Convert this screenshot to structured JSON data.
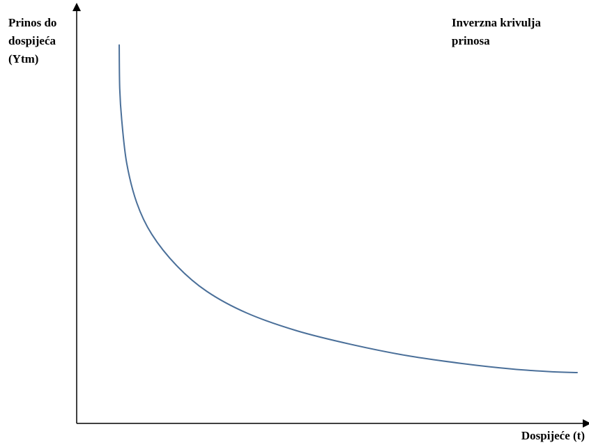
{
  "chart_data": {
    "type": "line",
    "title": "Inverzna krivulja prinosa",
    "xlabel": "Dospijeće (t)",
    "ylabel": "Prinos do dospijeća (Ytm)",
    "xlim": [
      0,
      1
    ],
    "ylim": [
      0,
      1
    ],
    "grid": false,
    "legend": "none",
    "series": [
      {
        "color": "#4a6f99",
        "points": [
          [
            0.085,
            0.96
          ],
          [
            0.086,
            0.85
          ],
          [
            0.09,
            0.77
          ],
          [
            0.1,
            0.66
          ],
          [
            0.12,
            0.56
          ],
          [
            0.15,
            0.48
          ],
          [
            0.2,
            0.4
          ],
          [
            0.26,
            0.335
          ],
          [
            0.34,
            0.28
          ],
          [
            0.44,
            0.235
          ],
          [
            0.55,
            0.2
          ],
          [
            0.66,
            0.172
          ],
          [
            0.77,
            0.152
          ],
          [
            0.87,
            0.138
          ],
          [
            0.95,
            0.131
          ],
          [
            1.0,
            0.129
          ]
        ]
      }
    ]
  }
}
